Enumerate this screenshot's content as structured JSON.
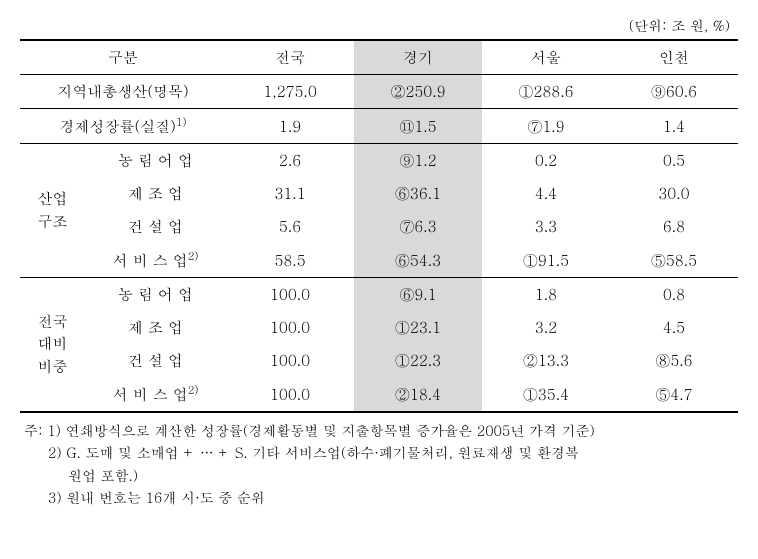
{
  "unit_label": "(단위: 조 원, %)",
  "header": {
    "category": "구분",
    "national": "전국",
    "gyeonggi": "경기",
    "seoul": "서울",
    "incheon": "인천"
  },
  "rows": {
    "grdp": {
      "label": "지역내총생산(명목)",
      "national": "1,275.0",
      "gyeonggi": "②250.9",
      "seoul": "①288.6",
      "incheon": "⑨60.6"
    },
    "growth": {
      "label": "경제성장률(실질)",
      "sup": "1)",
      "national": "1.9",
      "gyeonggi": "⑪1.5",
      "seoul": "⑦1.9",
      "incheon": "1.4"
    },
    "struct_label": "산업\n구조",
    "struct": {
      "agri": {
        "label": "농 림 어 업",
        "national": "2.6",
        "gyeonggi": "⑨1.2",
        "seoul": "0.2",
        "incheon": "0.5"
      },
      "manu": {
        "label": "제  조  업",
        "national": "31.1",
        "gyeonggi": "⑥36.1",
        "seoul": "4.4",
        "incheon": "30.0"
      },
      "cons": {
        "label": "건  설  업",
        "national": "5.6",
        "gyeonggi": "⑦6.3",
        "seoul": "3.3",
        "incheon": "6.8"
      },
      "serv": {
        "label": "서 비 스 업",
        "sup": "2)",
        "national": "58.5",
        "gyeonggi": "⑥54.3",
        "seoul": "①91.5",
        "incheon": "⑤58.5"
      }
    },
    "share_label": "전국\n대비\n비중",
    "share": {
      "agri": {
        "label": "농 림 어 업",
        "national": "100.0",
        "gyeonggi": "⑥9.1",
        "seoul": "1.8",
        "incheon": "0.8"
      },
      "manu": {
        "label": "제  조  업",
        "national": "100.0",
        "gyeonggi": "①23.1",
        "seoul": "3.2",
        "incheon": "4.5"
      },
      "cons": {
        "label": "건  설  업",
        "national": "100.0",
        "gyeonggi": "①22.3",
        "seoul": "②13.3",
        "incheon": "⑧5.6"
      },
      "serv": {
        "label": "서 비 스 업",
        "sup": "2)",
        "national": "100.0",
        "gyeonggi": "②18.4",
        "seoul": "①35.4",
        "incheon": "⑤4.7"
      }
    }
  },
  "footnotes": {
    "n1": "주: 1) 연쇄방식으로 계산한 성장률(경제활동별 및 지출항목별 증가율은 2005년 가격 기준)",
    "n2a": "2) G. 도매 및 소매업 + … + S. 기타 서비스업(하수·폐기물처리, 원료재생 및 환경복",
    "n2b": "원업 포함.)",
    "n3": "3) 원내 번호는 16개 시·도 중 순위"
  },
  "styling": {
    "highlight_bg": "#d9d9d9",
    "heavy_border": "#000000",
    "light_border": "#000000",
    "font_size_main": 15,
    "font_size_footnote": 14
  }
}
